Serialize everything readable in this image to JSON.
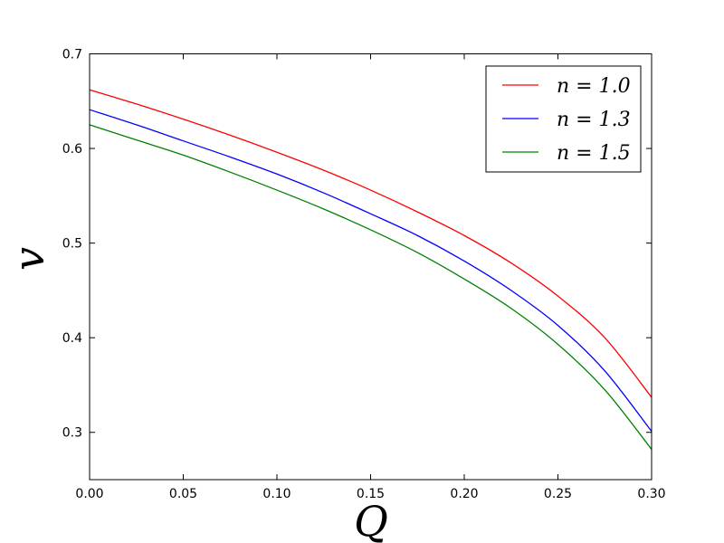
{
  "chart_data": {
    "type": "line",
    "title": "",
    "xlabel": "Q",
    "ylabel": "v",
    "xlim": [
      0.0,
      0.3
    ],
    "ylim": [
      0.25,
      0.7
    ],
    "x_ticks": [
      "0.00",
      "0.05",
      "0.10",
      "0.15",
      "0.20",
      "0.25",
      "0.30"
    ],
    "y_ticks": [
      "0.3",
      "0.4",
      "0.5",
      "0.6",
      "0.7"
    ],
    "grid": false,
    "legend_position": "top-right",
    "x": [
      0.0,
      0.025,
      0.05,
      0.075,
      0.1,
      0.125,
      0.15,
      0.175,
      0.2,
      0.225,
      0.25,
      0.275,
      0.3
    ],
    "series": [
      {
        "name": "n = 1.0",
        "color": "#ff0000",
        "values": [
          0.662,
          0.647,
          0.631,
          0.614,
          0.596,
          0.577,
          0.556,
          0.533,
          0.508,
          0.479,
          0.444,
          0.4,
          0.337
        ]
      },
      {
        "name": "n = 1.3",
        "color": "#0000ff",
        "values": [
          0.641,
          0.625,
          0.608,
          0.591,
          0.573,
          0.553,
          0.531,
          0.508,
          0.481,
          0.45,
          0.413,
          0.365,
          0.301
        ]
      },
      {
        "name": "n = 1.5",
        "color": "#008000",
        "values": [
          0.625,
          0.609,
          0.593,
          0.575,
          0.556,
          0.536,
          0.514,
          0.49,
          0.462,
          0.431,
          0.393,
          0.345,
          0.282
        ]
      }
    ]
  }
}
